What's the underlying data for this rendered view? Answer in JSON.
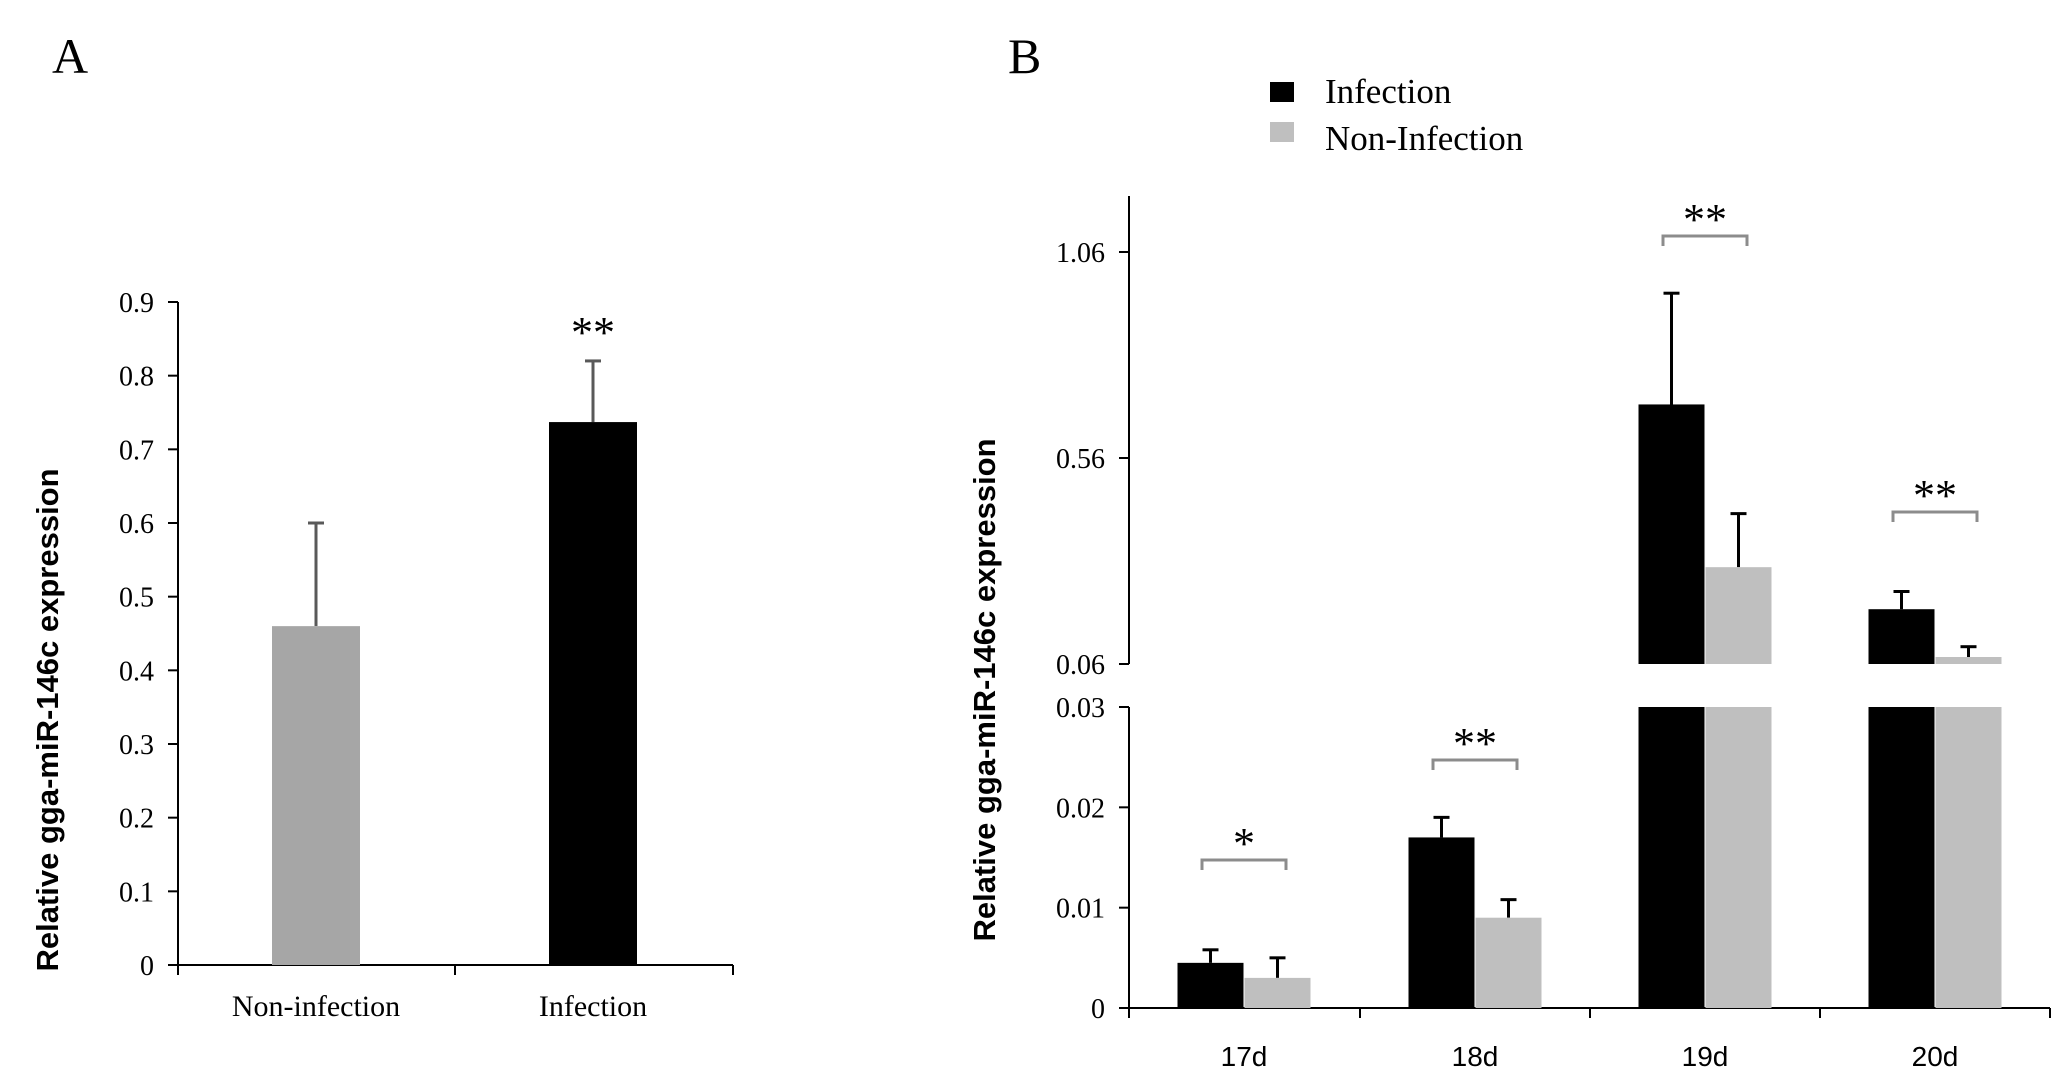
{
  "chart_data": [
    {
      "panel": "A",
      "type": "bar",
      "categories": [
        "Non-infection",
        "Infection"
      ],
      "values": [
        0.46,
        0.737
      ],
      "errors": [
        0.14,
        0.083
      ],
      "colors": [
        "#a6a6a6",
        "#000000"
      ],
      "ylabel": "Relative  gga-miR-146c  expression",
      "xlabel": "",
      "ylim": [
        0,
        0.9
      ],
      "ytick_labels": [
        "0",
        "0.1",
        "0.2",
        "0.3",
        "0.4",
        "0.5",
        "0.6",
        "0.7",
        "0.8",
        "0.9"
      ],
      "ytick_values": [
        0,
        0.1,
        0.2,
        0.3,
        0.4,
        0.5,
        0.6,
        0.7,
        0.8,
        0.9
      ],
      "significance": [
        "",
        "**"
      ]
    },
    {
      "panel": "B",
      "type": "bar",
      "categories": [
        "17d",
        "18d",
        "19d",
        "20d"
      ],
      "series": [
        {
          "name": "Infection",
          "color": "#000000",
          "values": [
            0.0045,
            0.017,
            0.69,
            0.193
          ],
          "errors": [
            0.0013,
            0.002,
            0.27,
            0.043
          ]
        },
        {
          "name": "Non-Infection",
          "color": "#bfbfbf",
          "values": [
            0.003,
            0.009,
            0.295,
            0.077
          ],
          "errors": [
            0.002,
            0.0018,
            0.13,
            0.025
          ]
        }
      ],
      "ylabel": "Relative  gga-miR-146c  expression",
      "axis_break": {
        "lower_range": [
          0,
          0.03
        ],
        "upper_range": [
          0.06,
          1.19
        ]
      },
      "ytick_labels_lower": [
        "0",
        "0.01",
        "0.02",
        "0.03"
      ],
      "ytick_values_lower": [
        0,
        0.01,
        0.02,
        0.03
      ],
      "ytick_labels_upper": [
        "0.06",
        "0.56",
        "1.06"
      ],
      "ytick_values_upper": [
        0.06,
        0.56,
        1.06
      ],
      "significance": [
        "*",
        "**",
        "**",
        "**"
      ],
      "legend_position": "top"
    }
  ],
  "panel_labels": {
    "a": "A",
    "b": "B"
  }
}
